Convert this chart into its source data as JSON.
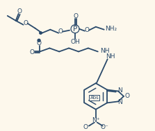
{
  "background_color": "#fdf8ec",
  "line_color": "#2a4a6b",
  "line_width": 1.3,
  "font_size": 6.5,
  "figsize": [
    2.23,
    1.89
  ],
  "dpi": 100,
  "labels": {
    "NH2": "NH₂",
    "NH": "NH",
    "N_plus": "N⁺",
    "O_minus": "O⁻",
    "OH": "OH",
    "O": "O",
    "P": "P",
    "Abs": "Abs"
  }
}
